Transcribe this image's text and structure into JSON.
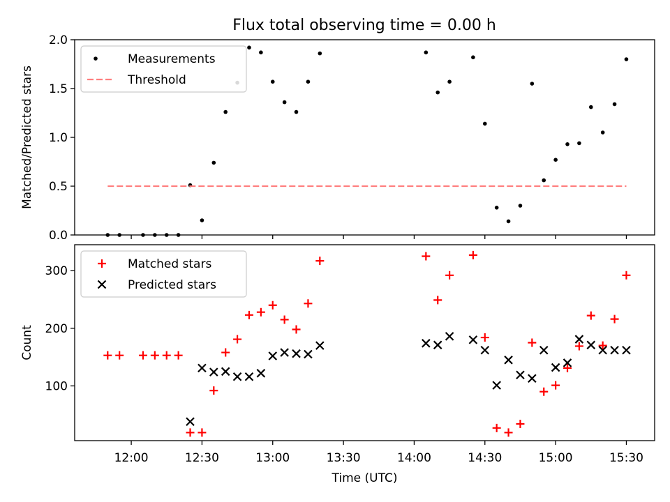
{
  "figure": {
    "title": "Flux total observing time = 0.00 h"
  },
  "chart_data": [
    {
      "type": "scatter",
      "panel": "top",
      "title": "Flux total observing time = 0.00 h",
      "ylabel": "Matched/Predicted stars",
      "xlabel": "",
      "x_unit": "time of day (UTC)",
      "xlim": [
        "11:36",
        "15:42"
      ],
      "ylim": [
        0,
        2.0
      ],
      "yticks": [
        0.0,
        0.5,
        1.0,
        1.5,
        2.0
      ],
      "yticklabels": [
        "0.0",
        "0.5",
        "1.0",
        "1.5",
        "2.0"
      ],
      "xticks": [
        "12:00",
        "12:30",
        "13:00",
        "13:30",
        "14:00",
        "14:30",
        "15:00",
        "15:30"
      ],
      "grid": false,
      "legend_position": "top-left",
      "series": [
        {
          "name": "Measurements",
          "kind": "points",
          "color": "#000000",
          "points": [
            {
              "x": "11:50",
              "y": 0.0
            },
            {
              "x": "11:55",
              "y": 0.0
            },
            {
              "x": "12:05",
              "y": 0.0
            },
            {
              "x": "12:10",
              "y": 0.0
            },
            {
              "x": "12:15",
              "y": 0.0
            },
            {
              "x": "12:20",
              "y": 0.0
            },
            {
              "x": "12:25",
              "y": 0.51
            },
            {
              "x": "12:30",
              "y": 0.15
            },
            {
              "x": "12:35",
              "y": 0.74
            },
            {
              "x": "12:40",
              "y": 1.26
            },
            {
              "x": "12:45",
              "y": 1.56
            },
            {
              "x": "12:50",
              "y": 1.92
            },
            {
              "x": "12:55",
              "y": 1.87
            },
            {
              "x": "13:00",
              "y": 1.57
            },
            {
              "x": "13:05",
              "y": 1.36
            },
            {
              "x": "13:10",
              "y": 1.26
            },
            {
              "x": "13:15",
              "y": 1.57
            },
            {
              "x": "13:20",
              "y": 1.86
            },
            {
              "x": "14:05",
              "y": 1.87
            },
            {
              "x": "14:10",
              "y": 1.46
            },
            {
              "x": "14:15",
              "y": 1.57
            },
            {
              "x": "14:25",
              "y": 1.82
            },
            {
              "x": "14:30",
              "y": 1.14
            },
            {
              "x": "14:35",
              "y": 0.28
            },
            {
              "x": "14:40",
              "y": 0.14
            },
            {
              "x": "14:45",
              "y": 0.3
            },
            {
              "x": "14:50",
              "y": 1.55
            },
            {
              "x": "14:55",
              "y": 0.56
            },
            {
              "x": "15:00",
              "y": 0.77
            },
            {
              "x": "15:05",
              "y": 0.93
            },
            {
              "x": "15:10",
              "y": 0.94
            },
            {
              "x": "15:15",
              "y": 1.31
            },
            {
              "x": "15:20",
              "y": 1.05
            },
            {
              "x": "15:25",
              "y": 1.34
            },
            {
              "x": "15:30",
              "y": 1.8
            }
          ]
        },
        {
          "name": "Threshold",
          "kind": "dashed-line",
          "color": "#ff7f7f",
          "points": [
            {
              "x": "11:50",
              "y": 0.5
            },
            {
              "x": "15:30",
              "y": 0.5
            }
          ]
        }
      ]
    },
    {
      "type": "scatter",
      "panel": "bottom",
      "title": "",
      "ylabel": "Count",
      "xlabel": "Time (UTC)",
      "x_unit": "time of day (UTC)",
      "xlim": [
        "11:36",
        "15:42"
      ],
      "ylim": [
        5,
        345
      ],
      "yticks": [
        100,
        200,
        300
      ],
      "yticklabels": [
        "100",
        "200",
        "300"
      ],
      "xticks": [
        "12:00",
        "12:30",
        "13:00",
        "13:30",
        "14:00",
        "14:30",
        "15:00",
        "15:30"
      ],
      "grid": false,
      "legend_position": "top-left",
      "series": [
        {
          "name": "Matched stars",
          "kind": "plus-markers",
          "color": "#ff0000",
          "points": [
            {
              "x": "11:50",
              "y": 153
            },
            {
              "x": "11:55",
              "y": 153
            },
            {
              "x": "12:05",
              "y": 153
            },
            {
              "x": "12:10",
              "y": 153
            },
            {
              "x": "12:15",
              "y": 153
            },
            {
              "x": "12:20",
              "y": 153
            },
            {
              "x": "12:25",
              "y": 19
            },
            {
              "x": "12:30",
              "y": 19
            },
            {
              "x": "12:35",
              "y": 92
            },
            {
              "x": "12:40",
              "y": 158
            },
            {
              "x": "12:45",
              "y": 181
            },
            {
              "x": "12:50",
              "y": 223
            },
            {
              "x": "12:55",
              "y": 228
            },
            {
              "x": "13:00",
              "y": 240
            },
            {
              "x": "13:05",
              "y": 215
            },
            {
              "x": "13:10",
              "y": 198
            },
            {
              "x": "13:15",
              "y": 243
            },
            {
              "x": "13:20",
              "y": 317
            },
            {
              "x": "14:05",
              "y": 325
            },
            {
              "x": "14:10",
              "y": 249
            },
            {
              "x": "14:15",
              "y": 292
            },
            {
              "x": "14:25",
              "y": 327
            },
            {
              "x": "14:30",
              "y": 184
            },
            {
              "x": "14:35",
              "y": 27
            },
            {
              "x": "14:40",
              "y": 19
            },
            {
              "x": "14:45",
              "y": 34
            },
            {
              "x": "14:50",
              "y": 175
            },
            {
              "x": "14:55",
              "y": 90
            },
            {
              "x": "15:00",
              "y": 101
            },
            {
              "x": "15:05",
              "y": 131
            },
            {
              "x": "15:10",
              "y": 169
            },
            {
              "x": "15:15",
              "y": 222
            },
            {
              "x": "15:20",
              "y": 170
            },
            {
              "x": "15:25",
              "y": 216
            },
            {
              "x": "15:30",
              "y": 292
            }
          ]
        },
        {
          "name": "Predicted stars",
          "kind": "x-markers",
          "color": "#000000",
          "points": [
            {
              "x": "12:25",
              "y": 38
            },
            {
              "x": "12:30",
              "y": 131
            },
            {
              "x": "12:35",
              "y": 124
            },
            {
              "x": "12:40",
              "y": 125
            },
            {
              "x": "12:45",
              "y": 116
            },
            {
              "x": "12:50",
              "y": 116
            },
            {
              "x": "12:55",
              "y": 122
            },
            {
              "x": "13:00",
              "y": 152
            },
            {
              "x": "13:05",
              "y": 158
            },
            {
              "x": "13:10",
              "y": 156
            },
            {
              "x": "13:15",
              "y": 155
            },
            {
              "x": "13:20",
              "y": 170
            },
            {
              "x": "14:05",
              "y": 174
            },
            {
              "x": "14:10",
              "y": 171
            },
            {
              "x": "14:15",
              "y": 186
            },
            {
              "x": "14:25",
              "y": 180
            },
            {
              "x": "14:30",
              "y": 162
            },
            {
              "x": "14:35",
              "y": 101
            },
            {
              "x": "14:40",
              "y": 145
            },
            {
              "x": "14:45",
              "y": 119
            },
            {
              "x": "14:50",
              "y": 113
            },
            {
              "x": "14:55",
              "y": 162
            },
            {
              "x": "15:00",
              "y": 132
            },
            {
              "x": "15:05",
              "y": 140
            },
            {
              "x": "15:10",
              "y": 181
            },
            {
              "x": "15:15",
              "y": 171
            },
            {
              "x": "15:20",
              "y": 162
            },
            {
              "x": "15:25",
              "y": 162
            },
            {
              "x": "15:30",
              "y": 162
            }
          ]
        }
      ]
    }
  ]
}
